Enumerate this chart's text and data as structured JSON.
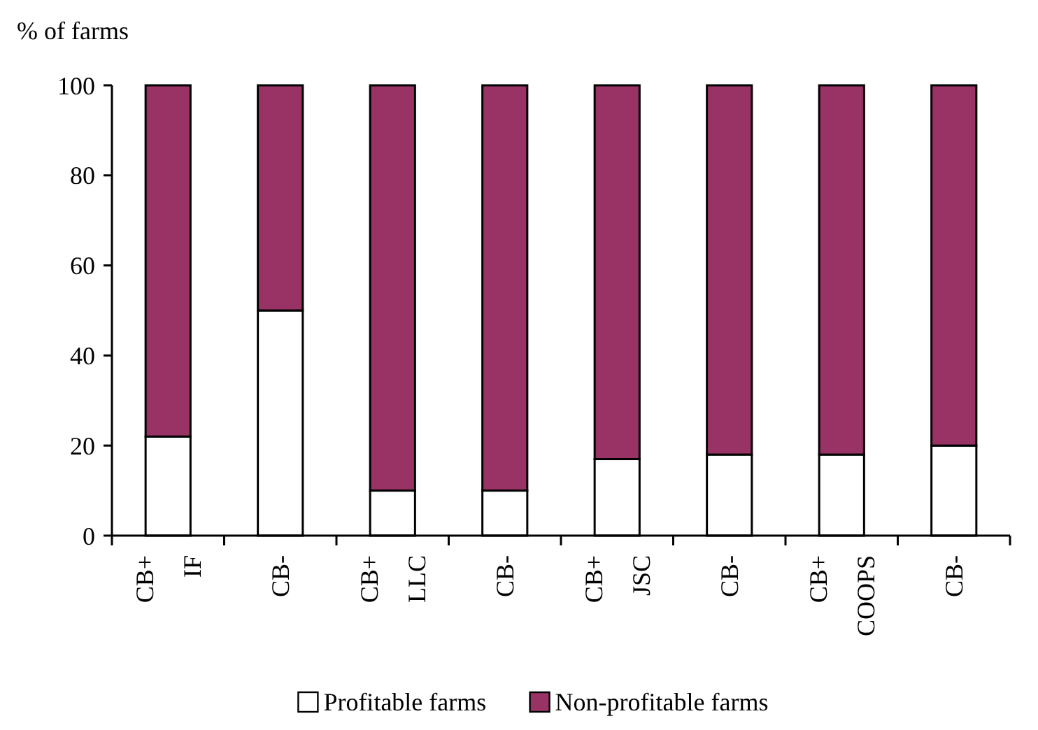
{
  "chart_data": {
    "type": "bar",
    "ylabel": "% of farms",
    "stacked": true,
    "categories": [
      "CB+\nIF",
      "CB-",
      "CB+\nLLC",
      "CB-",
      "CB+\nJSC",
      "CB-",
      "CB+\nCOOPS",
      "CB-"
    ],
    "series": [
      {
        "name": "Profitable farms",
        "color": "#ffffff",
        "values": [
          22,
          50,
          10,
          10,
          17,
          18,
          18,
          20
        ]
      },
      {
        "name": "Non-profitable farms",
        "color": "#993366",
        "values": [
          78,
          50,
          90,
          90,
          83,
          82,
          82,
          80
        ]
      }
    ],
    "ylim": [
      0,
      100
    ],
    "yticks": [
      0,
      20,
      40,
      60,
      80,
      100
    ],
    "legend": "bottom"
  }
}
